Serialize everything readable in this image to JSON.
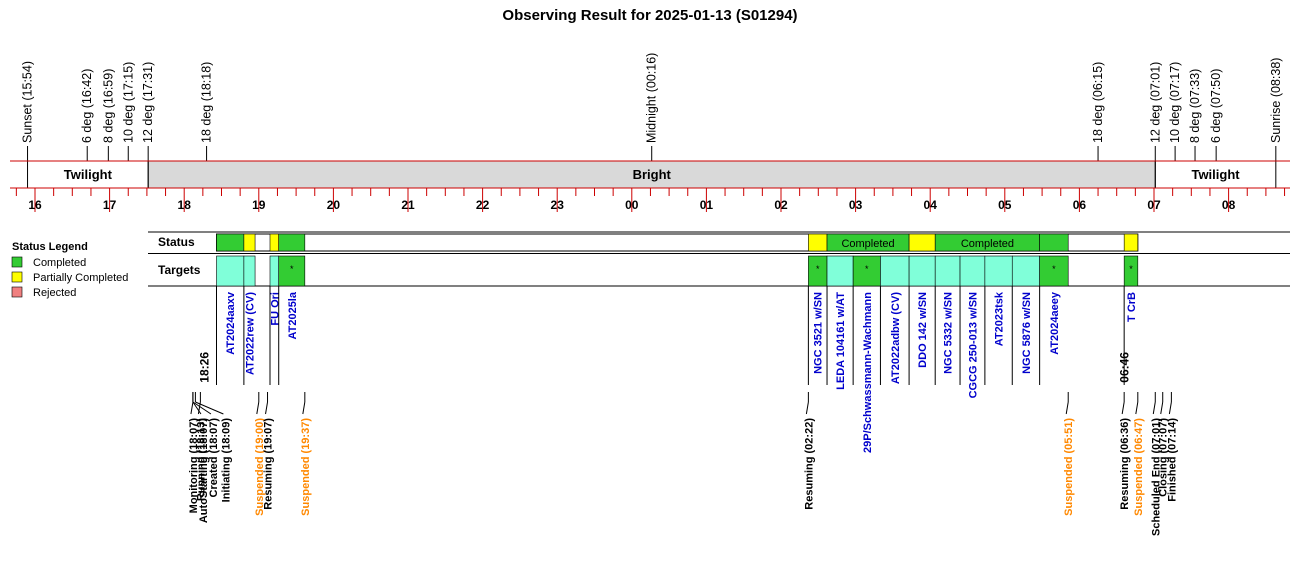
{
  "title": "Observing Result for 2025-01-13 (S01294)",
  "colors": {
    "completed": "#33cc33",
    "partial": "#ffff00",
    "rejected": "#f08080",
    "target": "#80ffd9",
    "twilight_bg": "#ffffff",
    "bright_bg": "#d9d9d9",
    "red_line": "#cc0000",
    "target_label": "#0000cc",
    "event_black": "#000000",
    "event_orange": "#ff8800"
  },
  "chart_data": {
    "type": "timeline",
    "x_unit": "hour of night (16 = 16:00, 25 = 01:00 next day)",
    "xlim": [
      15.8,
      33.0
    ],
    "hour_ticks": [
      {
        "x": 16,
        "label": "16"
      },
      {
        "x": 17,
        "label": "17"
      },
      {
        "x": 18,
        "label": "18"
      },
      {
        "x": 19,
        "label": "19"
      },
      {
        "x": 20,
        "label": "20"
      },
      {
        "x": 21,
        "label": "21"
      },
      {
        "x": 22,
        "label": "22"
      },
      {
        "x": 23,
        "label": "23"
      },
      {
        "x": 24,
        "label": "00"
      },
      {
        "x": 25,
        "label": "01"
      },
      {
        "x": 26,
        "label": "02"
      },
      {
        "x": 27,
        "label": "03"
      },
      {
        "x": 28,
        "label": "04"
      },
      {
        "x": 29,
        "label": "05"
      },
      {
        "x": 30,
        "label": "06"
      },
      {
        "x": 31,
        "label": "07"
      },
      {
        "x": 32,
        "label": "08"
      }
    ],
    "sky_markers": [
      {
        "x": 15.9,
        "label": "Sunset (15:54)"
      },
      {
        "x": 16.7,
        "label": "6 deg (16:42)"
      },
      {
        "x": 16.983,
        "label": "8 deg (16:59)"
      },
      {
        "x": 17.25,
        "label": "10 deg (17:15)"
      },
      {
        "x": 17.517,
        "label": "12 deg (17:31)"
      },
      {
        "x": 18.3,
        "label": "18 deg (18:18)"
      },
      {
        "x": 24.267,
        "label": "Midnight (00:16)"
      },
      {
        "x": 30.25,
        "label": "18 deg (06:15)"
      },
      {
        "x": 31.017,
        "label": "12 deg (07:01)"
      },
      {
        "x": 31.283,
        "label": "10 deg (07:17)"
      },
      {
        "x": 31.55,
        "label": "8 deg (07:33)"
      },
      {
        "x": 31.833,
        "label": "6 deg (07:50)"
      },
      {
        "x": 32.633,
        "label": "Sunrise (08:38)"
      }
    ],
    "sky_bands": [
      {
        "start": 15.9,
        "end": 17.517,
        "label": "Twilight",
        "fill": "twilight"
      },
      {
        "start": 17.517,
        "end": 31.017,
        "label": "Bright",
        "fill": "bright"
      },
      {
        "start": 31.017,
        "end": 32.633,
        "label": "Twilight",
        "fill": "twilight"
      }
    ],
    "legend": {
      "title": "Status Legend",
      "items": [
        {
          "label": "Completed",
          "status": "completed"
        },
        {
          "label": "Partially Completed",
          "status": "partial"
        },
        {
          "label": "Rejected",
          "status": "rejected"
        }
      ]
    },
    "row_labels": {
      "status": "Status",
      "targets": "Targets"
    },
    "status_segments": [
      {
        "start": 18.433,
        "end": 18.8,
        "status": "completed",
        "label": ""
      },
      {
        "start": 18.8,
        "end": 18.95,
        "status": "partial",
        "label": ""
      },
      {
        "start": 19.15,
        "end": 19.267,
        "status": "partial",
        "label": ""
      },
      {
        "start": 19.267,
        "end": 19.617,
        "status": "completed",
        "label": ""
      },
      {
        "start": 26.367,
        "end": 26.617,
        "status": "partial",
        "label": ""
      },
      {
        "start": 26.617,
        "end": 27.717,
        "status": "completed",
        "label": "Completed"
      },
      {
        "start": 27.717,
        "end": 28.067,
        "status": "partial",
        "label": ""
      },
      {
        "start": 28.067,
        "end": 29.467,
        "status": "completed",
        "label": "Completed"
      },
      {
        "start": 29.467,
        "end": 29.85,
        "status": "completed",
        "label": ""
      },
      {
        "start": 30.6,
        "end": 30.783,
        "status": "partial",
        "label": ""
      }
    ],
    "targets": [
      {
        "start": 18.433,
        "end": 18.8,
        "name": "AT2024aaxv",
        "kind": "target"
      },
      {
        "start": 18.8,
        "end": 18.95,
        "name": "AT2022rew (CV)",
        "kind": "target"
      },
      {
        "start": 19.15,
        "end": 19.267,
        "name": "FU Ori",
        "kind": "target"
      },
      {
        "start": 19.267,
        "end": 19.617,
        "name": "AT2025la",
        "kind": "completed"
      },
      {
        "start": 26.367,
        "end": 26.617,
        "name": "NGC 3521 w/SN",
        "kind": "completed"
      },
      {
        "start": 26.617,
        "end": 26.967,
        "name": "LEDA 104161 w/AT",
        "kind": "target"
      },
      {
        "start": 26.967,
        "end": 27.333,
        "name": "29P/Schwassmann-Wachmann",
        "kind": "completed"
      },
      {
        "start": 27.333,
        "end": 27.717,
        "name": "AT2022adbw (CV)",
        "kind": "target"
      },
      {
        "start": 27.717,
        "end": 28.067,
        "name": "DDO 142  w/SN",
        "kind": "target"
      },
      {
        "start": 28.067,
        "end": 28.4,
        "name": "NGC 5332 w/SN",
        "kind": "target"
      },
      {
        "start": 28.4,
        "end": 28.733,
        "name": "CGCG 250-013 w/SN",
        "kind": "target"
      },
      {
        "start": 28.733,
        "end": 29.1,
        "name": "AT2023tsk",
        "kind": "target"
      },
      {
        "start": 29.1,
        "end": 29.467,
        "name": "NGC 5876 w/SN",
        "kind": "target"
      },
      {
        "start": 29.467,
        "end": 29.85,
        "name": "AT2024aeey",
        "kind": "completed"
      },
      {
        "start": 30.6,
        "end": 30.783,
        "name": "T CrB",
        "kind": "completed"
      }
    ],
    "cell_mark": "*",
    "time_marks": [
      {
        "x": 18.433,
        "label": "18:26"
      },
      {
        "x": 30.767,
        "label": "06:46"
      }
    ],
    "events": [
      {
        "x": 18.117,
        "label": "Monitoring (18:07)",
        "color": "black"
      },
      {
        "x": 18.117,
        "label": "AutoStarting (18:07)",
        "color": "black"
      },
      {
        "x": 18.117,
        "label": "Created (18:07)",
        "color": "black"
      },
      {
        "x": 18.15,
        "label": "Initiating (18:09)",
        "color": "black"
      },
      {
        "x": 18.217,
        "label": "Running (18:13)",
        "color": "black"
      },
      {
        "x": 19.0,
        "label": "Suspended (19:00)",
        "color": "orange"
      },
      {
        "x": 19.117,
        "label": "Resuming (19:07)",
        "color": "black"
      },
      {
        "x": 19.617,
        "label": "Suspended (19:37)",
        "color": "orange"
      },
      {
        "x": 26.367,
        "label": "Resuming (02:22)",
        "color": "black"
      },
      {
        "x": 29.85,
        "label": "Suspended (05:51)",
        "color": "orange"
      },
      {
        "x": 30.6,
        "label": "Resuming (06:36)",
        "color": "black"
      },
      {
        "x": 30.783,
        "label": "Suspended (06:47)",
        "color": "orange"
      },
      {
        "x": 31.017,
        "label": "Scheduled End (07:01)",
        "color": "black"
      },
      {
        "x": 31.117,
        "label": "Closing (07:07)",
        "color": "black"
      },
      {
        "x": 31.233,
        "label": "Finished (07:14)",
        "color": "black"
      }
    ]
  }
}
